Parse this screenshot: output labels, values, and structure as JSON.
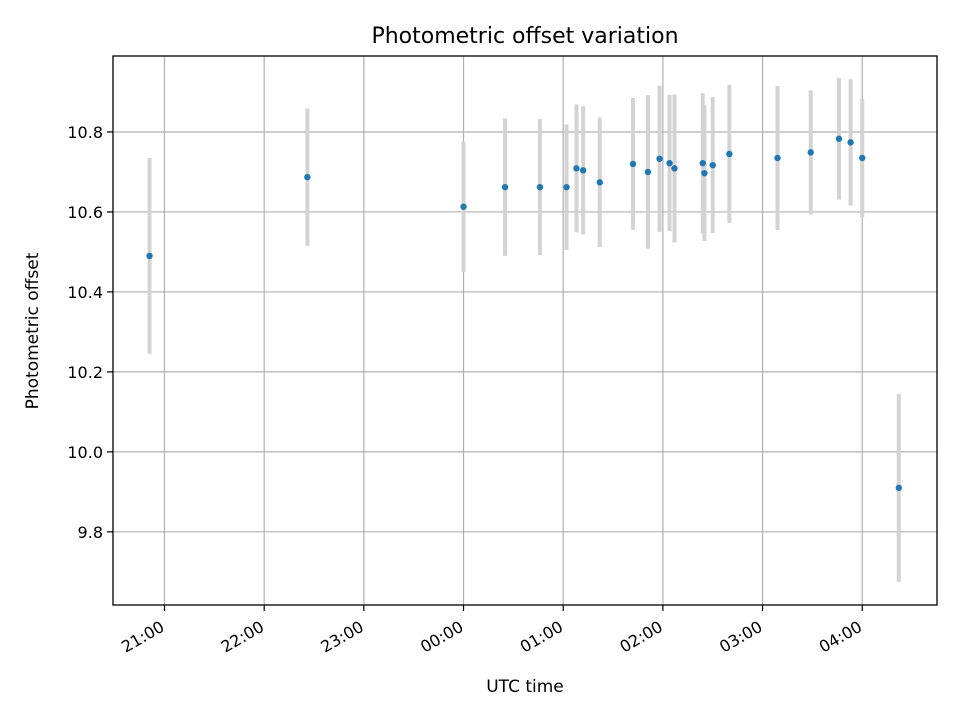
{
  "chart_data": {
    "type": "scatter",
    "title": "Photometric offset variation",
    "xlabel": "UTC time",
    "ylabel": "Photometric offset",
    "x_unit": "UTC time (HH:MM)",
    "xlim": [
      "20:29",
      "04:45"
    ],
    "ylim": [
      9.617,
      10.99
    ],
    "x_ticks": [
      "21:00",
      "22:00",
      "23:00",
      "00:00",
      "01:00",
      "02:00",
      "03:00",
      "04:00"
    ],
    "y_ticks": [
      "9.8",
      "10.0",
      "10.2",
      "10.4",
      "10.6",
      "10.8"
    ],
    "grid": true,
    "legend": "none",
    "colors": {
      "points": "#1f77b4",
      "errorbars": "#d3d3d3",
      "grid": "#b0b0b0"
    },
    "points": [
      {
        "time": "20:51",
        "y": 10.49,
        "yerr": 0.245
      },
      {
        "time": "22:26",
        "y": 10.687,
        "yerr": 0.172
      },
      {
        "time": "00:00",
        "y": 10.613,
        "yerr": 0.163
      },
      {
        "time": "00:25",
        "y": 10.662,
        "yerr": 0.172
      },
      {
        "time": "00:46",
        "y": 10.662,
        "yerr": 0.17
      },
      {
        "time": "01:02",
        "y": 10.662,
        "yerr": 0.157
      },
      {
        "time": "01:08",
        "y": 10.709,
        "yerr": 0.16
      },
      {
        "time": "01:12",
        "y": 10.704,
        "yerr": 0.16
      },
      {
        "time": "01:22",
        "y": 10.674,
        "yerr": 0.162
      },
      {
        "time": "01:42",
        "y": 10.72,
        "yerr": 0.165
      },
      {
        "time": "01:51",
        "y": 10.7,
        "yerr": 0.192
      },
      {
        "time": "01:58",
        "y": 10.733,
        "yerr": 0.183
      },
      {
        "time": "02:04",
        "y": 10.722,
        "yerr": 0.17
      },
      {
        "time": "02:07",
        "y": 10.709,
        "yerr": 0.185
      },
      {
        "time": "02:24",
        "y": 10.722,
        "yerr": 0.175
      },
      {
        "time": "02:25",
        "y": 10.697,
        "yerr": 0.17
      },
      {
        "time": "02:30",
        "y": 10.717,
        "yerr": 0.17
      },
      {
        "time": "02:40",
        "y": 10.745,
        "yerr": 0.173
      },
      {
        "time": "03:09",
        "y": 10.735,
        "yerr": 0.18
      },
      {
        "time": "03:29",
        "y": 10.749,
        "yerr": 0.155
      },
      {
        "time": "03:46",
        "y": 10.783,
        "yerr": 0.152
      },
      {
        "time": "03:53",
        "y": 10.774,
        "yerr": 0.158
      },
      {
        "time": "04:00",
        "y": 10.735,
        "yerr": 0.148
      },
      {
        "time": "04:22",
        "y": 9.91,
        "yerr": 0.235
      }
    ]
  }
}
